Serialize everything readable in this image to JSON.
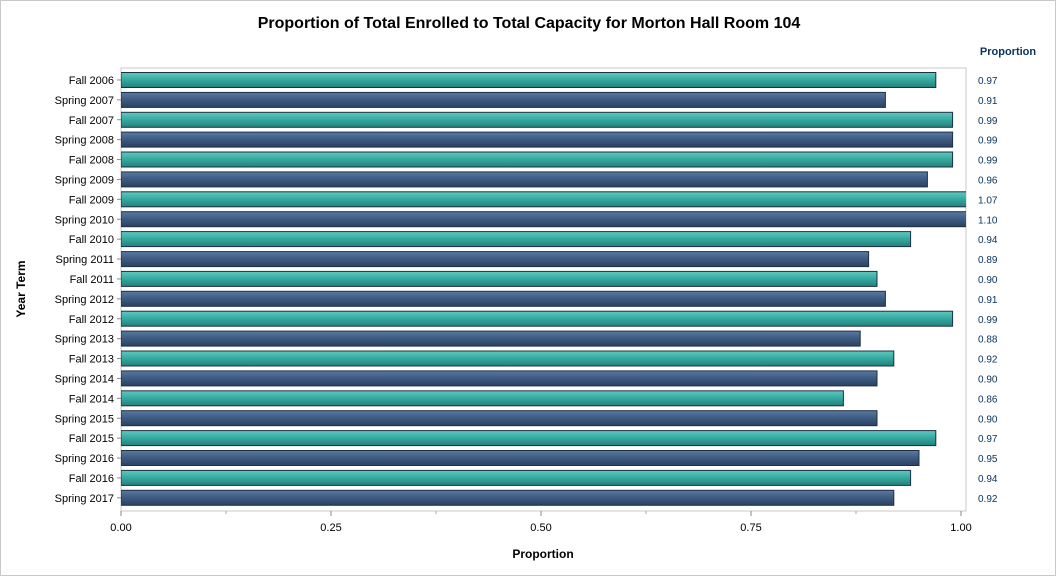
{
  "chart_data": {
    "type": "bar",
    "orientation": "horizontal",
    "title": "Proportion of Total Enrolled to Total Capacity for Morton Hall Room 104",
    "xlabel": "Proportion",
    "ylabel": "Year Term",
    "value_column_header": "Proportion",
    "xlim": [
      0,
      1.0
    ],
    "x_ticks": [
      0,
      0.25,
      0.5,
      0.75,
      1.0
    ],
    "x_tick_labels": [
      "0.00",
      "0.25",
      "0.50",
      "0.75",
      "1.00"
    ],
    "grid": false,
    "categories": [
      "Fall 2006",
      "Spring 2007",
      "Fall 2007",
      "Spring 2008",
      "Fall 2008",
      "Spring 2009",
      "Fall 2009",
      "Spring 2010",
      "Fall 2010",
      "Spring 2011",
      "Fall 2011",
      "Spring 2012",
      "Fall 2012",
      "Spring 2013",
      "Fall 2013",
      "Spring 2014",
      "Fall 2014",
      "Spring 2015",
      "Fall 2015",
      "Spring 2016",
      "Fall 2016",
      "Spring 2017"
    ],
    "values": [
      0.97,
      0.91,
      0.99,
      0.99,
      0.99,
      0.96,
      1.07,
      1.1,
      0.94,
      0.89,
      0.9,
      0.91,
      0.99,
      0.88,
      0.92,
      0.9,
      0.86,
      0.9,
      0.97,
      0.95,
      0.94,
      0.92
    ],
    "value_labels": [
      "0.97",
      "0.91",
      "0.99",
      "0.99",
      "0.99",
      "0.96",
      "1.07",
      "1.10",
      "0.94",
      "0.89",
      "0.90",
      "0.91",
      "0.99",
      "0.88",
      "0.92",
      "0.90",
      "0.86",
      "0.90",
      "0.97",
      "0.95",
      "0.94",
      "0.92"
    ],
    "colors": {
      "fall": "#35a8a0",
      "spring": "#3d5a80",
      "text_dark_blue": "#0a3560"
    }
  }
}
